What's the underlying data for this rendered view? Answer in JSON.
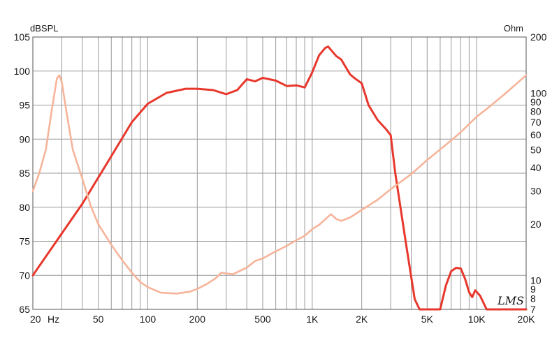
{
  "chart_data": {
    "type": "line",
    "title": "",
    "left_axis_label": "dBSPL",
    "right_axis_label": "Ohm",
    "x_scale": "log",
    "xlim": [
      20,
      20000
    ],
    "ylim_left": [
      65,
      105
    ],
    "ylim_right": [
      7,
      200
    ],
    "y_right_scale": "log",
    "grid": true,
    "x_ticks": [
      {
        "v": 20,
        "label": "20"
      },
      {
        "v": 50,
        "label": "50"
      },
      {
        "v": 100,
        "label": "100"
      },
      {
        "v": 200,
        "label": "200"
      },
      {
        "v": 500,
        "label": "500"
      },
      {
        "v": 1000,
        "label": "1K"
      },
      {
        "v": 2000,
        "label": "2K"
      },
      {
        "v": 5000,
        "label": "5K"
      },
      {
        "v": 10000,
        "label": "10K"
      },
      {
        "v": 20000,
        "label": "20K"
      }
    ],
    "x_unit_label": "Hz",
    "x_grid_lines": [
      20,
      30,
      40,
      50,
      60,
      70,
      80,
      90,
      100,
      200,
      300,
      400,
      500,
      600,
      700,
      800,
      900,
      1000,
      2000,
      3000,
      4000,
      5000,
      6000,
      7000,
      8000,
      9000,
      10000,
      20000
    ],
    "y_left_ticks": [
      65,
      70,
      75,
      80,
      85,
      90,
      95,
      100,
      105
    ],
    "y_right_ticks": [
      {
        "v": 7,
        "label": "7"
      },
      {
        "v": 8,
        "label": "8"
      },
      {
        "v": 9,
        "label": "9"
      },
      {
        "v": 10,
        "label": "10"
      },
      {
        "v": 20,
        "label": "20"
      },
      {
        "v": 30,
        "label": "30"
      },
      {
        "v": 40,
        "label": "40"
      },
      {
        "v": 50,
        "label": "50"
      },
      {
        "v": 60,
        "label": "60"
      },
      {
        "v": 70,
        "label": "70"
      },
      {
        "v": 80,
        "label": "80"
      },
      {
        "v": 90,
        "label": "90"
      },
      {
        "v": 100,
        "label": "100"
      },
      {
        "v": 200,
        "label": "200"
      }
    ],
    "series": [
      {
        "axis": "left",
        "color": "#e8372c",
        "points": [
          [
            20,
            70
          ],
          [
            40,
            80.5
          ],
          [
            60,
            87.5
          ],
          [
            80,
            92.5
          ],
          [
            100,
            95.2
          ],
          [
            130,
            96.8
          ],
          [
            170,
            97.4
          ],
          [
            200,
            97.4
          ],
          [
            250,
            97.2
          ],
          [
            300,
            96.6
          ],
          [
            350,
            97.2
          ],
          [
            400,
            98.8
          ],
          [
            450,
            98.5
          ],
          [
            500,
            99
          ],
          [
            600,
            98.6
          ],
          [
            700,
            97.8
          ],
          [
            800,
            97.9
          ],
          [
            900,
            97.6
          ],
          [
            1000,
            99.8
          ],
          [
            1100,
            102.3
          ],
          [
            1200,
            103.4
          ],
          [
            1250,
            103.6
          ],
          [
            1400,
            102.2
          ],
          [
            1500,
            101.7
          ],
          [
            1700,
            99.5
          ],
          [
            1800,
            99
          ],
          [
            2000,
            98.2
          ],
          [
            2200,
            95
          ],
          [
            2500,
            92.8
          ],
          [
            2800,
            91.5
          ],
          [
            3000,
            90.6
          ],
          [
            3200,
            85
          ],
          [
            3700,
            75
          ],
          [
            4200,
            66.5
          ],
          [
            4500,
            65
          ],
          [
            6000,
            65
          ],
          [
            6500,
            68.5
          ],
          [
            7000,
            70.6
          ],
          [
            7500,
            71.1
          ],
          [
            8000,
            71
          ],
          [
            8500,
            69.5
          ],
          [
            9000,
            67.5
          ],
          [
            9400,
            66.8
          ],
          [
            9800,
            67.8
          ],
          [
            10500,
            67
          ],
          [
            11500,
            65
          ],
          [
            20000,
            65
          ]
        ]
      },
      {
        "axis": "right",
        "color": "#f6b49a",
        "points": [
          [
            20,
            30
          ],
          [
            22,
            38
          ],
          [
            24,
            50
          ],
          [
            26,
            80
          ],
          [
            28,
            120
          ],
          [
            29,
            125
          ],
          [
            30,
            115
          ],
          [
            32,
            80
          ],
          [
            35,
            50
          ],
          [
            40,
            35
          ],
          [
            45,
            25
          ],
          [
            50,
            20
          ],
          [
            60,
            15.5
          ],
          [
            70,
            12.8
          ],
          [
            80,
            11
          ],
          [
            90,
            9.8
          ],
          [
            100,
            9.2
          ],
          [
            120,
            8.6
          ],
          [
            150,
            8.5
          ],
          [
            180,
            8.7
          ],
          [
            200,
            9
          ],
          [
            230,
            9.6
          ],
          [
            260,
            10.3
          ],
          [
            280,
            11
          ],
          [
            300,
            10.9
          ],
          [
            330,
            10.8
          ],
          [
            400,
            11.7
          ],
          [
            450,
            12.7
          ],
          [
            500,
            13.1
          ],
          [
            600,
            14.3
          ],
          [
            700,
            15.3
          ],
          [
            800,
            16.4
          ],
          [
            900,
            17.3
          ],
          [
            1000,
            18.8
          ],
          [
            1100,
            19.8
          ],
          [
            1200,
            21.2
          ],
          [
            1300,
            22.6
          ],
          [
            1400,
            21.3
          ],
          [
            1500,
            20.8
          ],
          [
            1700,
            21.7
          ],
          [
            2000,
            23.8
          ],
          [
            2500,
            27
          ],
          [
            3000,
            30.7
          ],
          [
            4000,
            37
          ],
          [
            5000,
            44
          ],
          [
            7000,
            56
          ],
          [
            8000,
            62
          ],
          [
            10000,
            75
          ],
          [
            12000,
            85
          ],
          [
            15000,
            100
          ],
          [
            20000,
            125
          ]
        ]
      }
    ],
    "logo": "LMS"
  }
}
